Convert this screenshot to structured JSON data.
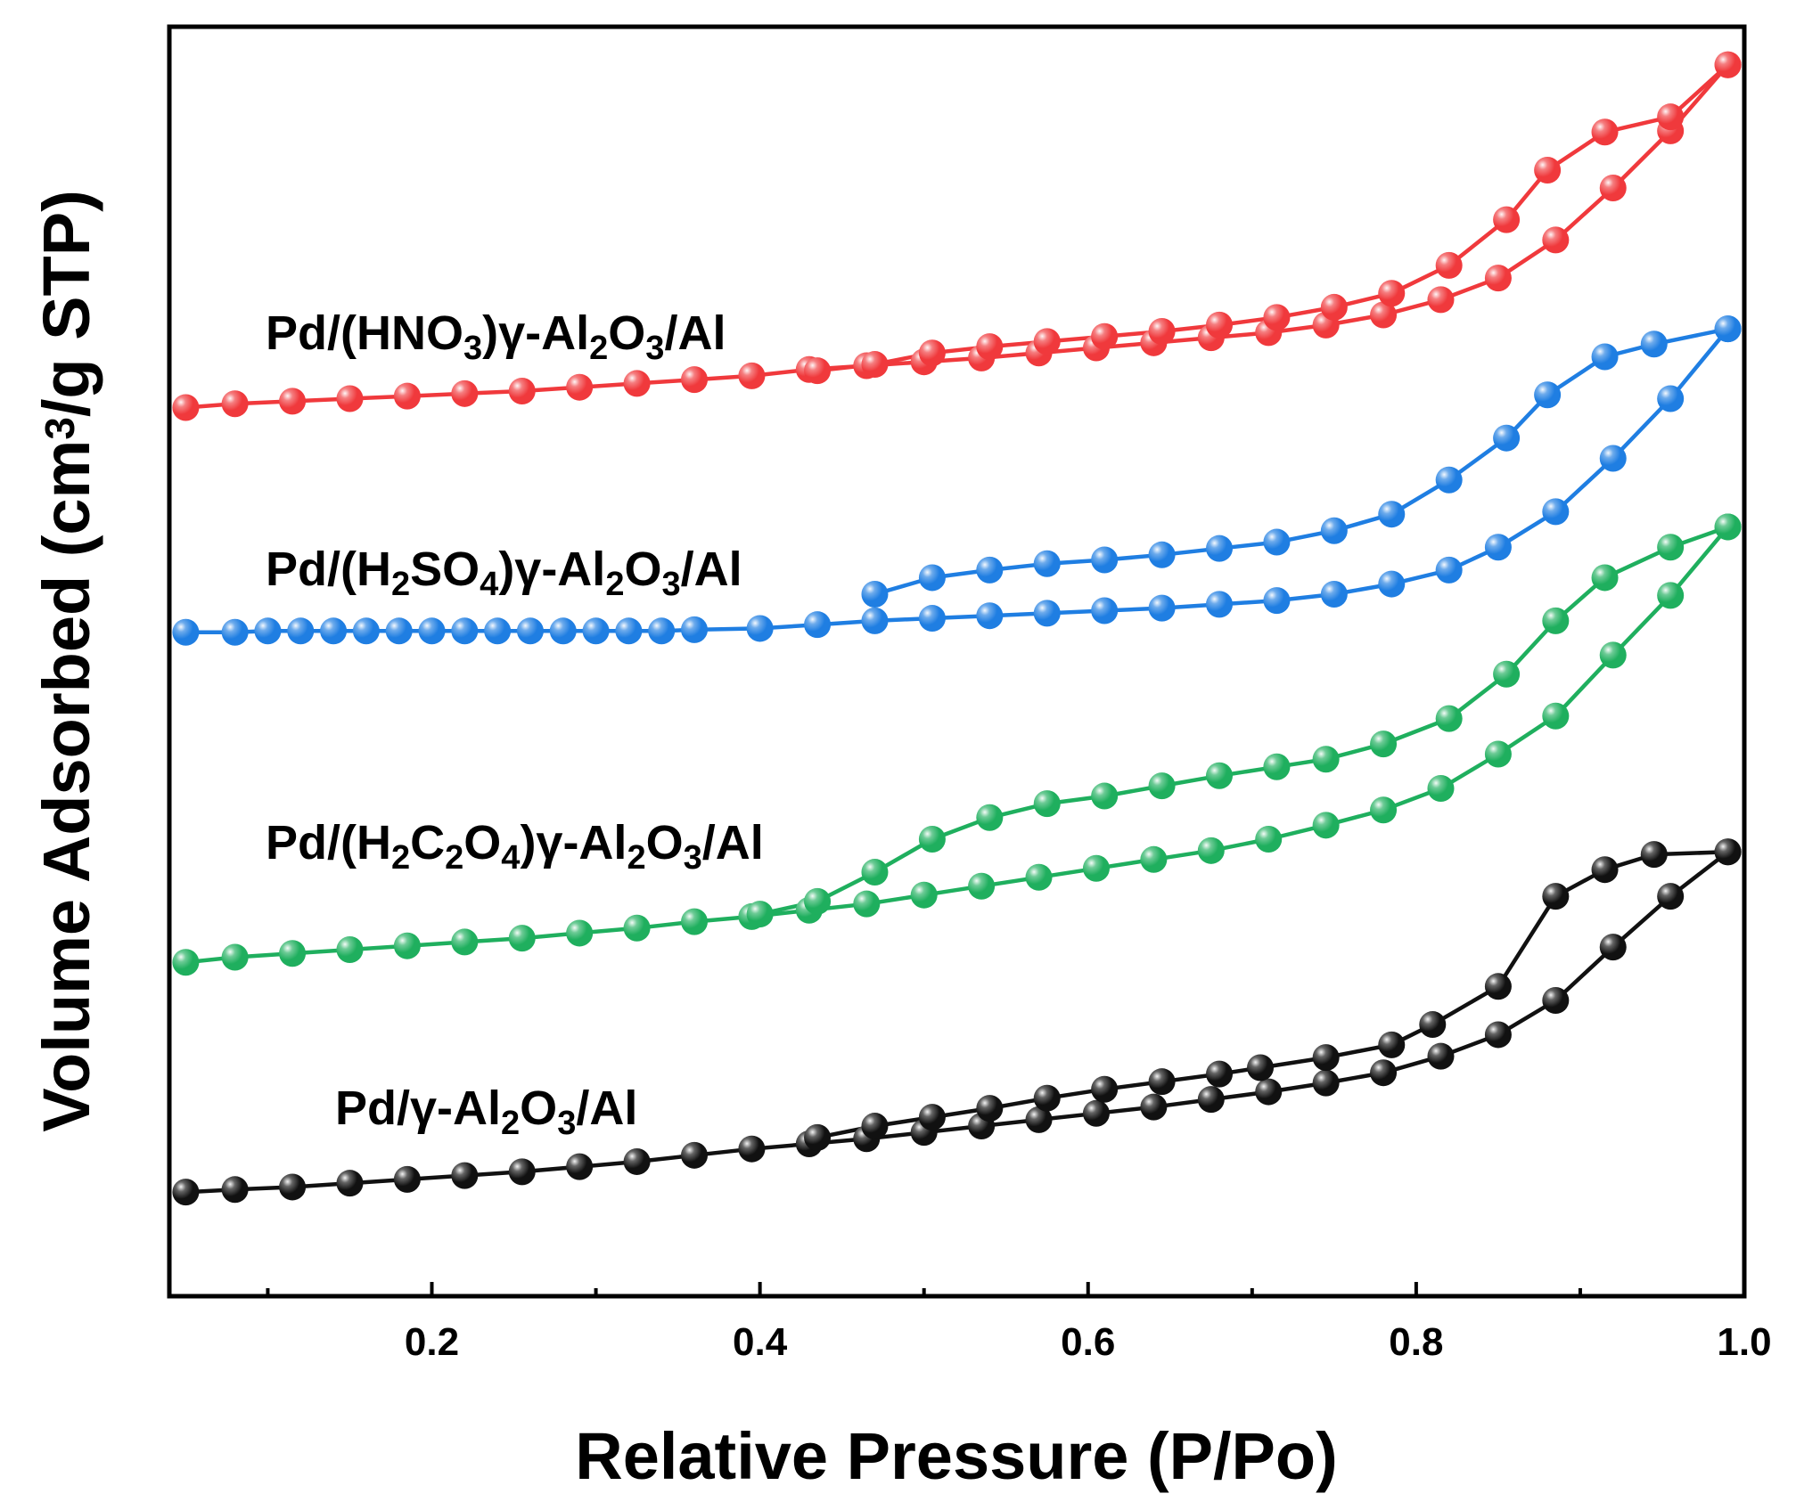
{
  "chart_data": {
    "type": "line",
    "title": "",
    "xlabel": "Relative Pressure (P/Po)",
    "ylabel_parts": [
      {
        "t": "Volume Adsorbed (cm"
      },
      {
        "t": "3",
        "s": "sup"
      },
      {
        "t": "/g STP)"
      }
    ],
    "xlim": [
      0.04,
      1.0
    ],
    "ylim": [
      0,
      100
    ],
    "xticks": [
      0.2,
      0.4,
      0.6,
      0.8,
      1.0
    ],
    "xticks_minor": [
      0.1,
      0.3,
      0.5,
      0.7,
      0.9
    ],
    "xtick_labels": [
      "0.2",
      "0.4",
      "0.6",
      "0.8",
      "1.0"
    ],
    "y_tick_labels_shown": false,
    "marker": "sphere",
    "series": [
      {
        "name": "Pd/(HNO3)γ-Al2O3/Al",
        "label_parts": [
          {
            "t": "Pd/(HNO"
          },
          {
            "t": "3",
            "s": "sub"
          },
          {
            "t": ")γ-Al"
          },
          {
            "t": "2",
            "s": "sub"
          },
          {
            "t": "O"
          },
          {
            "t": "3",
            "s": "sub"
          },
          {
            "t": "/Al"
          }
        ],
        "color": "#f0393c",
        "adsorption": [
          [
            0.05,
            70.0
          ],
          [
            0.08,
            70.3
          ],
          [
            0.115,
            70.5
          ],
          [
            0.15,
            70.7
          ],
          [
            0.185,
            70.9
          ],
          [
            0.22,
            71.1
          ],
          [
            0.255,
            71.3
          ],
          [
            0.29,
            71.6
          ],
          [
            0.325,
            71.9
          ],
          [
            0.36,
            72.2
          ],
          [
            0.395,
            72.5
          ],
          [
            0.43,
            73.0
          ],
          [
            0.465,
            73.3
          ],
          [
            0.5,
            73.6
          ],
          [
            0.535,
            73.9
          ],
          [
            0.57,
            74.3
          ],
          [
            0.605,
            74.7
          ],
          [
            0.64,
            75.1
          ],
          [
            0.675,
            75.5
          ],
          [
            0.71,
            75.9
          ],
          [
            0.745,
            76.5
          ],
          [
            0.78,
            77.3
          ],
          [
            0.815,
            78.5
          ],
          [
            0.85,
            80.2
          ],
          [
            0.885,
            83.2
          ],
          [
            0.92,
            87.3
          ],
          [
            0.955,
            91.8
          ],
          [
            0.99,
            97.0
          ]
        ],
        "desorption": [
          [
            0.99,
            97.0
          ],
          [
            0.955,
            92.9
          ],
          [
            0.915,
            91.7
          ],
          [
            0.88,
            88.7
          ],
          [
            0.855,
            84.8
          ],
          [
            0.82,
            81.2
          ],
          [
            0.785,
            79.0
          ],
          [
            0.75,
            77.9
          ],
          [
            0.715,
            77.1
          ],
          [
            0.68,
            76.5
          ],
          [
            0.645,
            76.0
          ],
          [
            0.61,
            75.6
          ],
          [
            0.575,
            75.2
          ],
          [
            0.54,
            74.8
          ],
          [
            0.505,
            74.3
          ],
          [
            0.47,
            73.4
          ],
          [
            0.435,
            72.9
          ]
        ]
      },
      {
        "name": "Pd/(H2SO4)γ-Al2O3/Al",
        "label_parts": [
          {
            "t": "Pd/(H"
          },
          {
            "t": "2",
            "s": "sub"
          },
          {
            "t": "SO"
          },
          {
            "t": "4",
            "s": "sub"
          },
          {
            "t": ")γ-Al"
          },
          {
            "t": "2",
            "s": "sub"
          },
          {
            "t": "O"
          },
          {
            "t": "3",
            "s": "sub"
          },
          {
            "t": "/Al"
          }
        ],
        "color": "#1f7ee2",
        "adsorption": [
          [
            0.05,
            52.3
          ],
          [
            0.08,
            52.3
          ],
          [
            0.1,
            52.4
          ],
          [
            0.12,
            52.4
          ],
          [
            0.14,
            52.4
          ],
          [
            0.16,
            52.4
          ],
          [
            0.18,
            52.4
          ],
          [
            0.2,
            52.4
          ],
          [
            0.22,
            52.4
          ],
          [
            0.24,
            52.4
          ],
          [
            0.26,
            52.4
          ],
          [
            0.28,
            52.4
          ],
          [
            0.3,
            52.4
          ],
          [
            0.32,
            52.4
          ],
          [
            0.34,
            52.4
          ],
          [
            0.36,
            52.5
          ],
          [
            0.4,
            52.6
          ],
          [
            0.435,
            52.9
          ],
          [
            0.47,
            53.2
          ],
          [
            0.505,
            53.4
          ],
          [
            0.54,
            53.6
          ],
          [
            0.575,
            53.8
          ],
          [
            0.61,
            54.0
          ],
          [
            0.645,
            54.2
          ],
          [
            0.68,
            54.5
          ],
          [
            0.715,
            54.8
          ],
          [
            0.75,
            55.3
          ],
          [
            0.785,
            56.1
          ],
          [
            0.82,
            57.2
          ],
          [
            0.85,
            59.0
          ],
          [
            0.885,
            61.8
          ],
          [
            0.92,
            66.0
          ],
          [
            0.955,
            70.7
          ],
          [
            0.99,
            76.2
          ]
        ],
        "desorption": [
          [
            0.99,
            76.2
          ],
          [
            0.945,
            75.0
          ],
          [
            0.915,
            74.0
          ],
          [
            0.88,
            71.0
          ],
          [
            0.855,
            67.6
          ],
          [
            0.82,
            64.3
          ],
          [
            0.785,
            61.6
          ],
          [
            0.75,
            60.3
          ],
          [
            0.715,
            59.4
          ],
          [
            0.68,
            58.9
          ],
          [
            0.645,
            58.4
          ],
          [
            0.61,
            58.0
          ],
          [
            0.575,
            57.7
          ],
          [
            0.54,
            57.2
          ],
          [
            0.505,
            56.6
          ],
          [
            0.47,
            55.3
          ]
        ]
      },
      {
        "name": "Pd/(H2C2O4)γ-Al2O3/Al",
        "label_parts": [
          {
            "t": "Pd/(H"
          },
          {
            "t": "2",
            "s": "sub"
          },
          {
            "t": "C"
          },
          {
            "t": "2",
            "s": "sub"
          },
          {
            "t": "O"
          },
          {
            "t": "4",
            "s": "sub"
          },
          {
            "t": ")γ-Al"
          },
          {
            "t": "2",
            "s": "sub"
          },
          {
            "t": "O"
          },
          {
            "t": "3",
            "s": "sub"
          },
          {
            "t": "/Al"
          }
        ],
        "color": "#1faf5e",
        "adsorption": [
          [
            0.05,
            26.3
          ],
          [
            0.08,
            26.7
          ],
          [
            0.115,
            27.0
          ],
          [
            0.15,
            27.3
          ],
          [
            0.185,
            27.6
          ],
          [
            0.22,
            27.9
          ],
          [
            0.255,
            28.2
          ],
          [
            0.29,
            28.6
          ],
          [
            0.325,
            29.0
          ],
          [
            0.36,
            29.5
          ],
          [
            0.395,
            29.9
          ],
          [
            0.43,
            30.4
          ],
          [
            0.465,
            30.9
          ],
          [
            0.5,
            31.6
          ],
          [
            0.535,
            32.3
          ],
          [
            0.57,
            33.0
          ],
          [
            0.605,
            33.7
          ],
          [
            0.64,
            34.4
          ],
          [
            0.675,
            35.1
          ],
          [
            0.71,
            36.0
          ],
          [
            0.745,
            37.1
          ],
          [
            0.78,
            38.3
          ],
          [
            0.815,
            40.0
          ],
          [
            0.85,
            42.7
          ],
          [
            0.885,
            45.7
          ],
          [
            0.92,
            50.5
          ],
          [
            0.955,
            55.2
          ],
          [
            0.99,
            60.6
          ]
        ],
        "desorption": [
          [
            0.99,
            60.6
          ],
          [
            0.955,
            59.0
          ],
          [
            0.915,
            56.6
          ],
          [
            0.885,
            53.2
          ],
          [
            0.855,
            49.0
          ],
          [
            0.82,
            45.5
          ],
          [
            0.78,
            43.5
          ],
          [
            0.745,
            42.3
          ],
          [
            0.715,
            41.7
          ],
          [
            0.68,
            41.0
          ],
          [
            0.645,
            40.2
          ],
          [
            0.61,
            39.4
          ],
          [
            0.575,
            38.8
          ],
          [
            0.54,
            37.7
          ],
          [
            0.505,
            36.0
          ],
          [
            0.47,
            33.4
          ],
          [
            0.435,
            31.1
          ],
          [
            0.4,
            30.1
          ]
        ]
      },
      {
        "name": "Pd/γ-Al2O3/Al",
        "label_parts": [
          {
            "t": "Pd/γ-Al"
          },
          {
            "t": "2",
            "s": "sub"
          },
          {
            "t": "O"
          },
          {
            "t": "3",
            "s": "sub"
          },
          {
            "t": "/Al"
          }
        ],
        "color": "#111111",
        "adsorption": [
          [
            0.05,
            8.2
          ],
          [
            0.08,
            8.4
          ],
          [
            0.115,
            8.6
          ],
          [
            0.15,
            8.9
          ],
          [
            0.185,
            9.2
          ],
          [
            0.22,
            9.5
          ],
          [
            0.255,
            9.8
          ],
          [
            0.29,
            10.2
          ],
          [
            0.325,
            10.6
          ],
          [
            0.36,
            11.1
          ],
          [
            0.395,
            11.6
          ],
          [
            0.43,
            12.0
          ],
          [
            0.465,
            12.4
          ],
          [
            0.5,
            12.9
          ],
          [
            0.535,
            13.4
          ],
          [
            0.57,
            13.9
          ],
          [
            0.605,
            14.4
          ],
          [
            0.64,
            14.9
          ],
          [
            0.675,
            15.5
          ],
          [
            0.71,
            16.1
          ],
          [
            0.745,
            16.8
          ],
          [
            0.78,
            17.6
          ],
          [
            0.815,
            18.9
          ],
          [
            0.85,
            20.6
          ],
          [
            0.885,
            23.3
          ],
          [
            0.92,
            27.5
          ],
          [
            0.955,
            31.5
          ],
          [
            0.99,
            35.0
          ]
        ],
        "desorption": [
          [
            0.99,
            35.0
          ],
          [
            0.945,
            34.8
          ],
          [
            0.915,
            33.6
          ],
          [
            0.885,
            31.5
          ],
          [
            0.85,
            24.4
          ],
          [
            0.81,
            21.4
          ],
          [
            0.785,
            19.8
          ],
          [
            0.745,
            18.8
          ],
          [
            0.705,
            18.0
          ],
          [
            0.68,
            17.5
          ],
          [
            0.645,
            16.9
          ],
          [
            0.61,
            16.3
          ],
          [
            0.575,
            15.6
          ],
          [
            0.54,
            14.8
          ],
          [
            0.505,
            14.1
          ],
          [
            0.47,
            13.4
          ],
          [
            0.435,
            12.5
          ]
        ]
      }
    ]
  }
}
